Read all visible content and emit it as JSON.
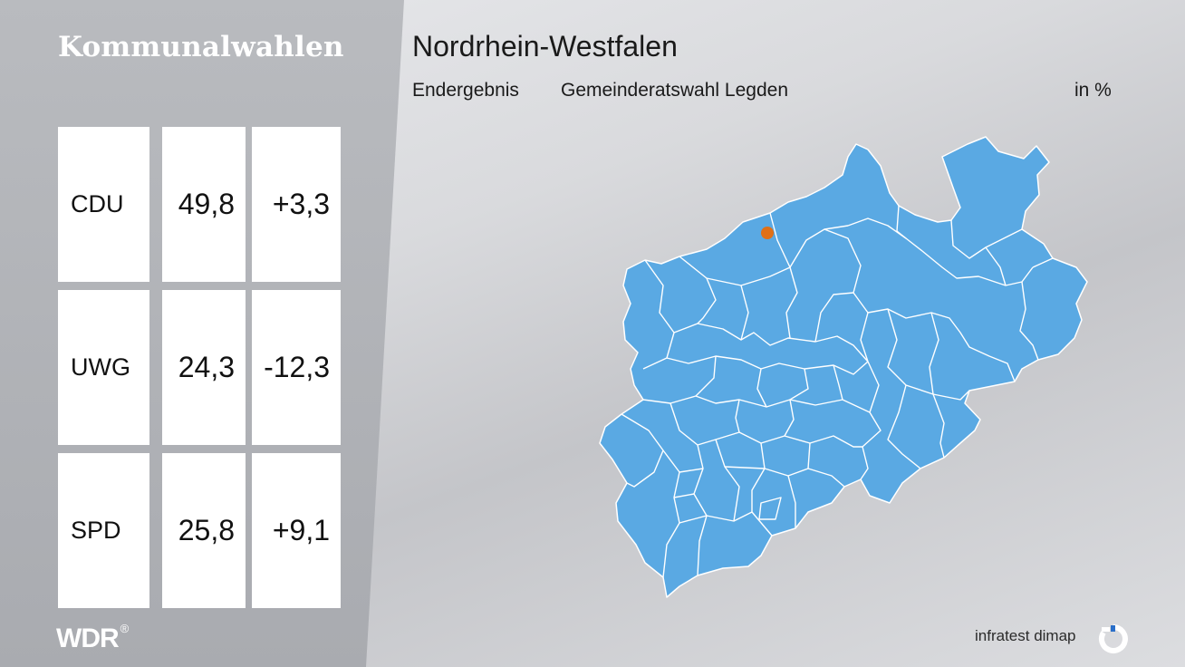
{
  "left_title": "Kommunalwahlen",
  "header": {
    "title": "Nordrhein-Westfalen",
    "result_type": "Endergebnis",
    "election": "Gemeinderatswahl Legden",
    "unit": "in %"
  },
  "results": [
    {
      "party": "CDU",
      "share": "49,8",
      "change": "+3,3"
    },
    {
      "party": "UWG",
      "share": "24,3",
      "change": "-12,3"
    },
    {
      "party": "SPD",
      "share": "25,8",
      "change": "+9,1"
    }
  ],
  "map": {
    "region_color": "#5aa9e3",
    "border_color": "#ffffff",
    "marker_color": "#e07017",
    "marker_label": "Legden"
  },
  "footer": {
    "broadcaster_logo": "WDR",
    "registered_mark": "®",
    "pollster": "infratest dimap",
    "pollster_icon": "infratest-dimap-logo-icon"
  }
}
